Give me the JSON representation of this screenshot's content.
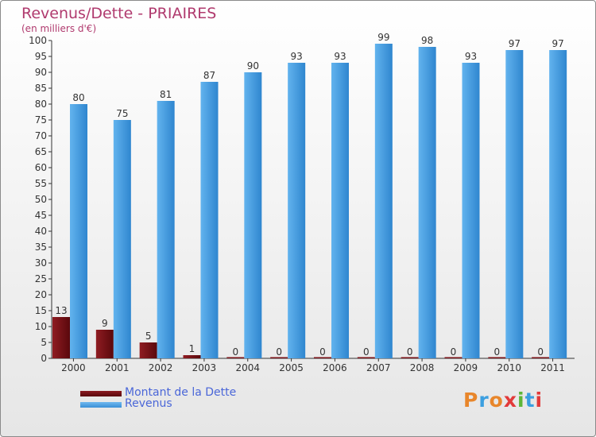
{
  "header": {
    "title": "Revenus/Dette - PRIAIRES",
    "unit": "(en milliers d'€)"
  },
  "legend": [
    {
      "label": "Montant de la Dette",
      "color": "#6e0d12"
    },
    {
      "label": "Revenus",
      "color": "#4aa1e6"
    }
  ],
  "logo": {
    "text": "Proxiti",
    "colors": [
      "#e8862b",
      "#3c9fe0",
      "#e8862b",
      "#e23a3a",
      "#5db638",
      "#3c9fe0",
      "#e23a3a"
    ]
  },
  "chart_data": {
    "type": "bar",
    "categories": [
      "2000",
      "2001",
      "2002",
      "2003",
      "2004",
      "2005",
      "2006",
      "2007",
      "2008",
      "2009",
      "2010",
      "2011"
    ],
    "series": [
      {
        "name": "Montant de la Dette",
        "color": "#6e0d12",
        "values": [
          13,
          9,
          5,
          1,
          0,
          0,
          0,
          0,
          0,
          0,
          0,
          0
        ]
      },
      {
        "name": "Revenus",
        "color": "#4aa1e6",
        "values": [
          80,
          75,
          81,
          87,
          90,
          93,
          93,
          99,
          98,
          93,
          97,
          97
        ]
      }
    ],
    "ylim": [
      0,
      100
    ],
    "yticks": [
      0,
      5,
      10,
      15,
      20,
      25,
      30,
      35,
      40,
      45,
      50,
      55,
      60,
      65,
      70,
      75,
      80,
      85,
      90,
      95,
      100
    ],
    "grid": false,
    "legend_position": "bottom-left"
  }
}
